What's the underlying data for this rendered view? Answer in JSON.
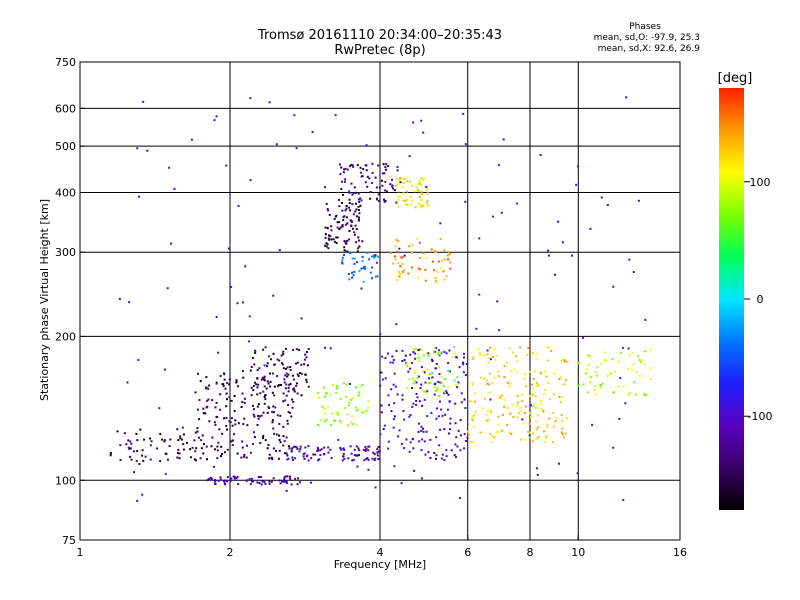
{
  "header": {
    "title": "Tromsø 20161110 20:34:00–20:35:43",
    "subtitle": "RwPretec (8p)"
  },
  "phases_box": {
    "title": "Phases",
    "line_o": "mean, sd,O: -97.9, 25.3",
    "line_x": "mean, sd,X:  92.6, 26.9"
  },
  "colorbar": {
    "label": "[deg]",
    "range": [
      -180,
      180
    ],
    "ticks": [
      "100",
      "0",
      "-100"
    ],
    "tick_values": [
      100,
      0,
      -100
    ],
    "colors": [
      "#000000",
      "#3a0066",
      "#5a00c0",
      "#1e1eff",
      "#0078ff",
      "#00e6ff",
      "#00ff5a",
      "#7aff00",
      "#ffff00",
      "#ff9a00",
      "#ff2000"
    ]
  },
  "chart_data": {
    "type": "scatter",
    "title": "Tromsø 20161110 20:34:00–20:35:43",
    "subtitle": "RwPretec (8p)",
    "xlabel": "Frequency [MHz]",
    "ylabel": "Stationary phase Virtual Height [km]",
    "x_scale": "log",
    "y_scale": "log",
    "xlim": [
      1,
      16
    ],
    "ylim": [
      75,
      750
    ],
    "x_ticks": [
      1,
      2,
      4,
      6,
      8,
      10,
      16
    ],
    "x_tick_labels": [
      "1",
      "2",
      "4",
      "6",
      "8",
      "10",
      "16"
    ],
    "y_ticks": [
      75,
      100,
      200,
      300,
      400,
      500,
      600,
      750
    ],
    "y_tick_labels": [
      "75",
      "100",
      "200",
      "300",
      "400",
      "500",
      "600",
      "750"
    ],
    "grid_x": [
      2,
      4,
      6,
      8,
      10
    ],
    "grid_y": [
      100,
      200,
      300,
      400,
      500,
      600
    ],
    "color_scale": "phase in deg, -180 to 180",
    "clusters": [
      {
        "name": "",
        "x_range": [
          1.15,
          1.7
        ],
        "y_range": [
          108,
          128
        ],
        "phase": -150,
        "n": 60
      },
      {
        "name": "",
        "x_range": [
          1.7,
          2.7
        ],
        "y_range": [
          110,
          170
        ],
        "phase": -150,
        "n": 220
      },
      {
        "name": "",
        "x_range": [
          2.2,
          2.9
        ],
        "y_range": [
          150,
          190
        ],
        "phase": -150,
        "n": 80
      },
      {
        "name": "",
        "x_range": [
          1.8,
          2.8
        ],
        "y_range": [
          98,
          102
        ],
        "phase": -110,
        "n": 70
      },
      {
        "name": "",
        "x_range": [
          2.6,
          3.2
        ],
        "y_range": [
          110,
          118
        ],
        "phase": -110,
        "n": 40
      },
      {
        "name": "",
        "x_range": [
          3.0,
          3.8
        ],
        "y_range": [
          130,
          160
        ],
        "phase": 80,
        "n": 60
      },
      {
        "name": "",
        "x_range": [
          3.3,
          4.0
        ],
        "y_range": [
          110,
          118
        ],
        "phase": -110,
        "n": 50
      },
      {
        "name": "",
        "x_range": [
          3.1,
          3.7
        ],
        "y_range": [
          300,
          380
        ],
        "phase": -150,
        "n": 90
      },
      {
        "name": "",
        "x_range": [
          3.3,
          4.4
        ],
        "y_range": [
          380,
          460
        ],
        "phase": -140,
        "n": 80
      },
      {
        "name": "",
        "x_range": [
          4.3,
          5.0
        ],
        "y_range": [
          370,
          430
        ],
        "phase": 110,
        "n": 60
      },
      {
        "name": "",
        "x_range": [
          3.3,
          4.0
        ],
        "y_range": [
          260,
          300
        ],
        "phase": -40,
        "n": 40
      },
      {
        "name": "",
        "x_range": [
          4.0,
          6.0
        ],
        "y_range": [
          110,
          190
        ],
        "phase": -100,
        "n": 180
      },
      {
        "name": "",
        "x_range": [
          4.5,
          5.8
        ],
        "y_range": [
          150,
          190
        ],
        "phase": 80,
        "n": 60
      },
      {
        "name": "",
        "x_range": [
          4.2,
          5.6
        ],
        "y_range": [
          260,
          320
        ],
        "phase": 140,
        "n": 60
      },
      {
        "name": "",
        "x_range": [
          6.0,
          9.5
        ],
        "y_range": [
          130,
          190
        ],
        "phase": 120,
        "n": 150
      },
      {
        "name": "",
        "x_range": [
          6.0,
          9.5
        ],
        "y_range": [
          120,
          130
        ],
        "phase": 120,
        "n": 40
      },
      {
        "name": "",
        "x_range": [
          10,
          14
        ],
        "y_range": [
          150,
          190
        ],
        "phase": 90,
        "n": 60
      },
      {
        "name": "",
        "x_range": [
          1.2,
          14
        ],
        "y_range": [
          90,
          650
        ],
        "phase": -90,
        "n": 140
      }
    ]
  }
}
